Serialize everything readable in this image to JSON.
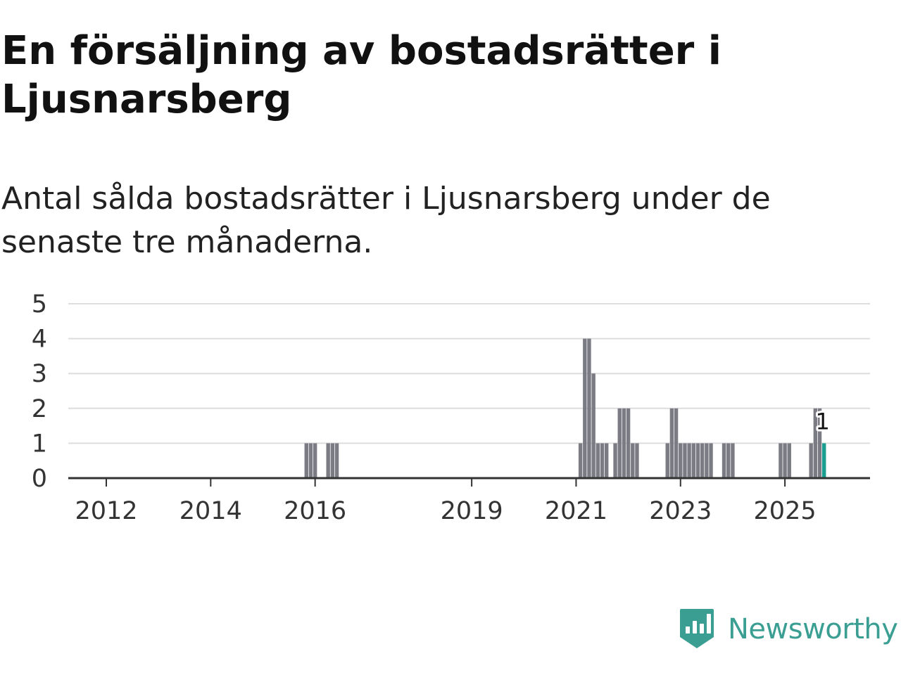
{
  "title": "En försäljning av bostadsrätter i Ljusnarsberg",
  "subtitle": "Antal sålda bostadsrätter i Ljusnarsberg under de senaste tre månaderna.",
  "brand": {
    "name": "Newsworthy",
    "icon": "newsworthy-logo-icon"
  },
  "colors": {
    "bar": "#7b7b84",
    "highlight": "#1a9e8f",
    "grid": "#dddddd",
    "axis": "#333333",
    "brand": "#3a9e92"
  },
  "chart_data": {
    "type": "bar",
    "title": "Antal sålda bostadsrätter",
    "xlabel": "",
    "ylabel": "",
    "ylim": [
      0,
      5
    ],
    "y_ticks": [
      0,
      1,
      2,
      3,
      4,
      5
    ],
    "x_ticks": [
      "2012",
      "2014",
      "2016",
      "2019",
      "2021",
      "2023",
      "2025"
    ],
    "grid": true,
    "series": [
      {
        "name": "Antal sålda",
        "points": [
          {
            "date": "2015-11",
            "value": 1
          },
          {
            "date": "2015-12",
            "value": 1
          },
          {
            "date": "2016-01",
            "value": 1
          },
          {
            "date": "2016-04",
            "value": 1
          },
          {
            "date": "2016-05",
            "value": 1
          },
          {
            "date": "2016-06",
            "value": 1
          },
          {
            "date": "2021-02",
            "value": 1
          },
          {
            "date": "2021-03",
            "value": 4
          },
          {
            "date": "2021-04",
            "value": 4
          },
          {
            "date": "2021-05",
            "value": 3
          },
          {
            "date": "2021-06",
            "value": 1
          },
          {
            "date": "2021-07",
            "value": 1
          },
          {
            "date": "2021-08",
            "value": 1
          },
          {
            "date": "2021-10",
            "value": 1
          },
          {
            "date": "2021-11",
            "value": 2
          },
          {
            "date": "2021-12",
            "value": 2
          },
          {
            "date": "2022-01",
            "value": 2
          },
          {
            "date": "2022-02",
            "value": 1
          },
          {
            "date": "2022-03",
            "value": 1
          },
          {
            "date": "2022-10",
            "value": 1
          },
          {
            "date": "2022-11",
            "value": 2
          },
          {
            "date": "2022-12",
            "value": 2
          },
          {
            "date": "2023-01",
            "value": 1
          },
          {
            "date": "2023-02",
            "value": 1
          },
          {
            "date": "2023-03",
            "value": 1
          },
          {
            "date": "2023-04",
            "value": 1
          },
          {
            "date": "2023-05",
            "value": 1
          },
          {
            "date": "2023-06",
            "value": 1
          },
          {
            "date": "2023-07",
            "value": 1
          },
          {
            "date": "2023-08",
            "value": 1
          },
          {
            "date": "2023-11",
            "value": 1
          },
          {
            "date": "2023-12",
            "value": 1
          },
          {
            "date": "2024-01",
            "value": 1
          },
          {
            "date": "2024-12",
            "value": 1
          },
          {
            "date": "2025-01",
            "value": 1
          },
          {
            "date": "2025-02",
            "value": 1
          },
          {
            "date": "2025-07",
            "value": 1
          },
          {
            "date": "2025-08",
            "value": 2
          },
          {
            "date": "2025-09",
            "value": 2
          },
          {
            "date": "2025-10",
            "value": 1,
            "highlight": true,
            "label": "1"
          }
        ]
      }
    ]
  }
}
